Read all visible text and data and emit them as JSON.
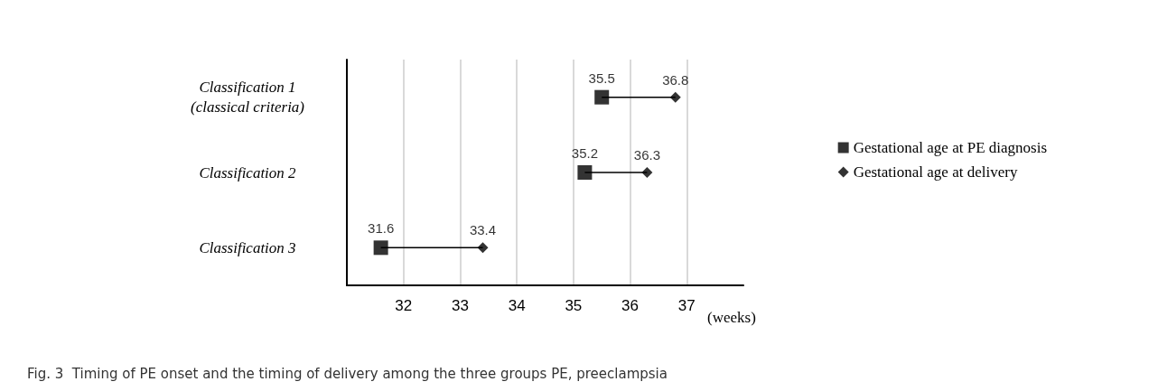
{
  "chart_data": {
    "type": "scatter",
    "orientation": "horizontal",
    "xlabel": "(weeks)",
    "categories": [
      "Classification 1\n(classical criteria)",
      "Classification 2",
      "Classification 3"
    ],
    "series": [
      {
        "name": "Gestational age at PE diagnosis",
        "color": "#000000",
        "marker": "square",
        "values": [
          35.5,
          35.2,
          31.6
        ]
      },
      {
        "name": "Gestational age at delivery",
        "color": "#000000",
        "marker": "diamond",
        "values": [
          36.8,
          36.3,
          33.4
        ]
      }
    ],
    "xlim": [
      31,
      38
    ],
    "xticks": [
      32,
      33,
      34,
      35,
      36,
      37
    ],
    "grid": "x",
    "legend": "right",
    "data_labels": true,
    "annotations": [
      "Fig. 3  Timing of PE onset and the timing of delivery among the three groups PE, preeclampsia"
    ]
  }
}
